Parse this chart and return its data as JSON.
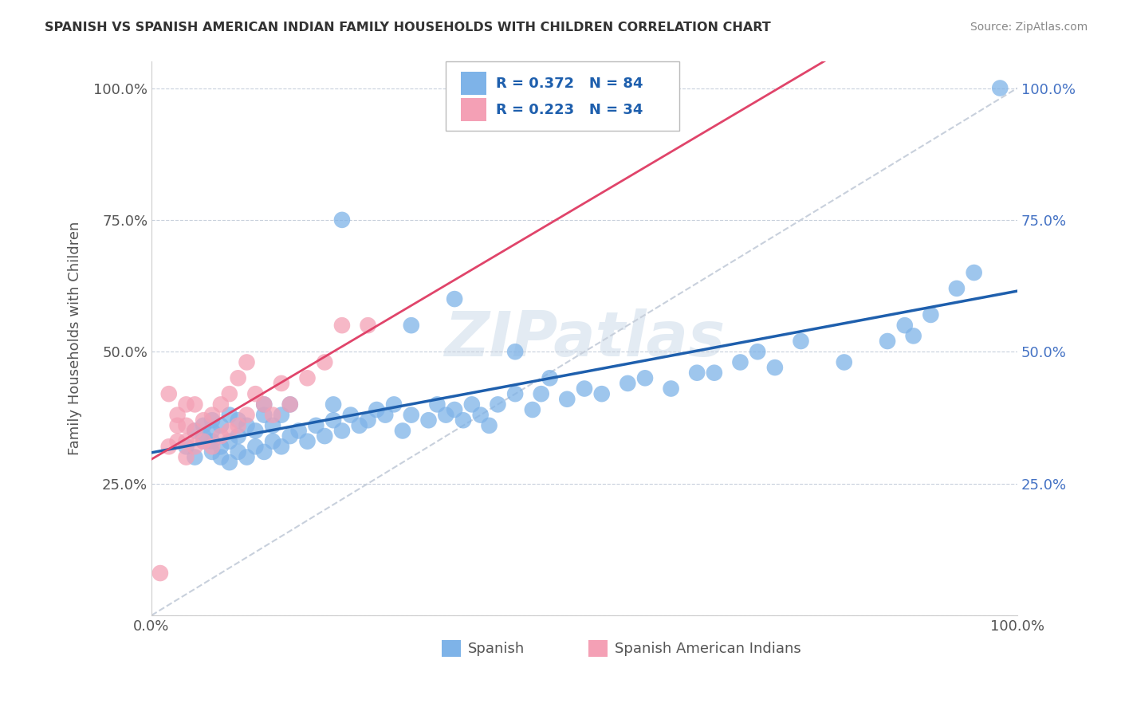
{
  "title": "SPANISH VS SPANISH AMERICAN INDIAN FAMILY HOUSEHOLDS WITH CHILDREN CORRELATION CHART",
  "source": "Source: ZipAtlas.com",
  "ylabel": "Family Households with Children",
  "ytick_positions": [
    0.0,
    0.25,
    0.5,
    0.75,
    1.0
  ],
  "ytick_labels": [
    "",
    "25.0%",
    "50.0%",
    "75.0%",
    "100.0%"
  ],
  "blue_R": 0.372,
  "blue_N": 84,
  "pink_R": 0.223,
  "pink_N": 34,
  "blue_color": "#7EB3E8",
  "pink_color": "#F4A0B5",
  "blue_line_color": "#1E5FAD",
  "pink_line_color": "#E0446A",
  "dashed_line_color": "#C8D0DC",
  "watermark": "ZIPatlas",
  "blue_scatter_x": [
    0.04,
    0.05,
    0.05,
    0.06,
    0.06,
    0.06,
    0.07,
    0.07,
    0.07,
    0.07,
    0.08,
    0.08,
    0.08,
    0.09,
    0.09,
    0.09,
    0.1,
    0.1,
    0.1,
    0.11,
    0.11,
    0.12,
    0.12,
    0.13,
    0.13,
    0.13,
    0.14,
    0.14,
    0.15,
    0.15,
    0.16,
    0.16,
    0.17,
    0.18,
    0.19,
    0.2,
    0.21,
    0.21,
    0.22,
    0.23,
    0.24,
    0.25,
    0.26,
    0.27,
    0.28,
    0.29,
    0.3,
    0.32,
    0.33,
    0.34,
    0.35,
    0.36,
    0.37,
    0.38,
    0.39,
    0.4,
    0.42,
    0.44,
    0.45,
    0.46,
    0.48,
    0.5,
    0.52,
    0.55,
    0.57,
    0.6,
    0.63,
    0.65,
    0.68,
    0.7,
    0.72,
    0.75,
    0.8,
    0.85,
    0.87,
    0.88,
    0.9,
    0.93,
    0.95,
    0.98,
    0.22,
    0.3,
    0.35,
    0.42
  ],
  "blue_scatter_y": [
    0.32,
    0.3,
    0.35,
    0.33,
    0.34,
    0.36,
    0.31,
    0.33,
    0.35,
    0.37,
    0.3,
    0.32,
    0.36,
    0.29,
    0.33,
    0.38,
    0.31,
    0.34,
    0.37,
    0.3,
    0.36,
    0.32,
    0.35,
    0.31,
    0.38,
    0.4,
    0.33,
    0.36,
    0.32,
    0.38,
    0.34,
    0.4,
    0.35,
    0.33,
    0.36,
    0.34,
    0.37,
    0.4,
    0.35,
    0.38,
    0.36,
    0.37,
    0.39,
    0.38,
    0.4,
    0.35,
    0.38,
    0.37,
    0.4,
    0.38,
    0.39,
    0.37,
    0.4,
    0.38,
    0.36,
    0.4,
    0.42,
    0.39,
    0.42,
    0.45,
    0.41,
    0.43,
    0.42,
    0.44,
    0.45,
    0.43,
    0.46,
    0.46,
    0.48,
    0.5,
    0.47,
    0.52,
    0.48,
    0.52,
    0.55,
    0.53,
    0.57,
    0.62,
    0.65,
    1.0,
    0.75,
    0.55,
    0.6,
    0.5
  ],
  "pink_scatter_x": [
    0.01,
    0.02,
    0.02,
    0.03,
    0.03,
    0.03,
    0.04,
    0.04,
    0.04,
    0.04,
    0.05,
    0.05,
    0.05,
    0.06,
    0.06,
    0.07,
    0.07,
    0.08,
    0.08,
    0.09,
    0.09,
    0.1,
    0.1,
    0.11,
    0.11,
    0.12,
    0.13,
    0.14,
    0.15,
    0.16,
    0.18,
    0.2,
    0.22,
    0.25
  ],
  "pink_scatter_y": [
    0.08,
    0.32,
    0.42,
    0.33,
    0.36,
    0.38,
    0.3,
    0.33,
    0.36,
    0.4,
    0.32,
    0.35,
    0.4,
    0.33,
    0.37,
    0.32,
    0.38,
    0.34,
    0.4,
    0.35,
    0.42,
    0.36,
    0.45,
    0.38,
    0.48,
    0.42,
    0.4,
    0.38,
    0.44,
    0.4,
    0.45,
    0.48,
    0.55,
    0.55
  ]
}
